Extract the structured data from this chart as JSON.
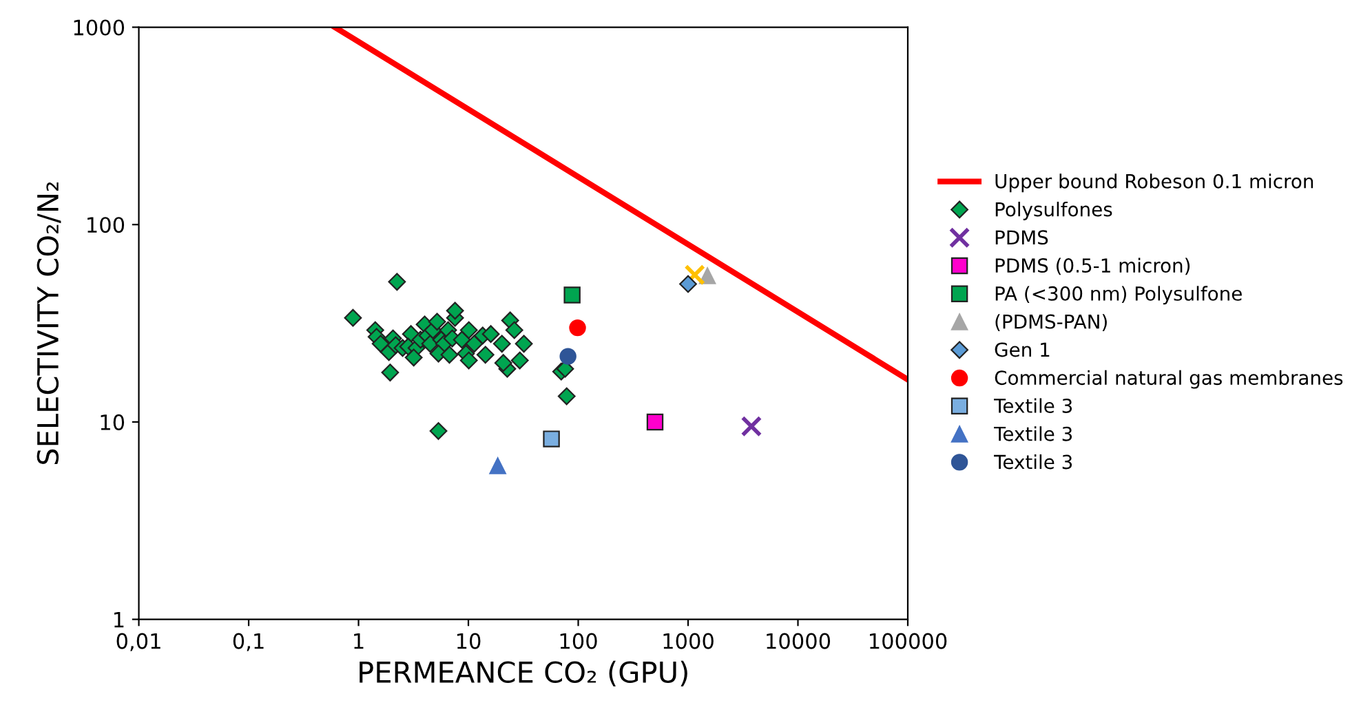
{
  "chart_data": {
    "type": "scatter",
    "xlabel": "PERMEANCE CO₂ (GPU)",
    "ylabel": "SELECTIVITY CO₂/N₂",
    "log": "xy",
    "xlim": [
      0.01,
      100000
    ],
    "ylim": [
      1,
      1000
    ],
    "xticks": [
      {
        "value": 0.01,
        "label": "0,01"
      },
      {
        "value": 0.1,
        "label": "0,1"
      },
      1,
      10,
      100,
      1000,
      10000,
      100000
    ],
    "yticks": [
      1,
      10,
      100,
      1000
    ],
    "grid": false,
    "legend": "right",
    "series": [
      {
        "name": "Upper bound Robeson 0.1 micron",
        "type": "line",
        "color": "#ff0000",
        "marker": "none",
        "line_style": "solid",
        "x": [
          0.61,
          100000
        ],
        "values": [
          1000,
          16.4
        ]
      },
      {
        "name": "Polysulfones",
        "color": "#00a550",
        "marker": "diamond",
        "x": [
          0.89,
          1.42,
          1.46,
          2.24,
          1.59,
          1.89,
          2.06,
          2.18,
          2.52,
          3.0,
          2.83,
          3.37,
          3.67,
          4.0,
          4.24,
          4.49,
          4.76,
          5.19,
          5.66,
          6.0,
          5.34,
          6.54,
          7.13,
          7.56,
          6.73,
          8.73,
          9.5,
          10.1,
          11.3,
          13.5,
          14.3,
          16.0,
          20.2,
          22.6,
          24.0,
          26.2,
          29.4,
          32.0,
          5.34,
          70,
          76,
          78.5,
          20.8,
          1.94,
          7.56,
          3.18,
          10.1
        ],
        "values": [
          33.7,
          29.2,
          27.0,
          51.3,
          24.9,
          22.6,
          26.5,
          24.5,
          23.7,
          27.9,
          24.1,
          23.7,
          26.1,
          31.2,
          27.4,
          24.9,
          29.2,
          32.2,
          26.1,
          24.9,
          22.2,
          29.2,
          26.5,
          33.7,
          21.9,
          26.1,
          22.2,
          20.5,
          24.9,
          27.4,
          21.9,
          27.9,
          24.9,
          18.6,
          32.7,
          29.2,
          20.5,
          24.9,
          9.0,
          18.0,
          18.6,
          13.5,
          19.9,
          17.8,
          36.6,
          21.2,
          29.2
        ]
      },
      {
        "name": "PDMS",
        "color": "#7030a0",
        "marker": "cross",
        "x": [
          3770
        ],
        "values": [
          9.5
        ]
      },
      {
        "name": "PDMS (0.5-1 micron)",
        "color": "#ff00cc",
        "marker": "square",
        "x": [
          500
        ],
        "values": [
          10
        ]
      },
      {
        "name": "PA (<300 nm) Polysulfone",
        "color": "#00a550",
        "marker": "square",
        "x": [
          88
        ],
        "values": [
          44
        ]
      },
      {
        "name": "(PDMS-PAN)",
        "color": "#a6a6a6",
        "marker": "triangle",
        "x": [
          1500
        ],
        "values": [
          55
        ]
      },
      {
        "color": "#ffc000",
        "marker": "cross",
        "x": [
          1150
        ],
        "values": [
          55.6
        ]
      },
      {
        "name": "Gen 1",
        "color": "#5b9bd5",
        "marker": "diamond",
        "x": [
          1000
        ],
        "values": [
          50
        ]
      },
      {
        "name": "Commercial natural gas membranes",
        "color": "#ff0000",
        "marker": "circle",
        "x": [
          98.6
        ],
        "values": [
          30
        ]
      },
      {
        "name": "Textile 3",
        "color": "#7aaee0",
        "marker": "square",
        "x": [
          57
        ],
        "values": [
          8.2
        ]
      },
      {
        "name": "Textile 3",
        "color": "#4472c4",
        "marker": "triangle",
        "x": [
          18.5
        ],
        "values": [
          6.0
        ]
      },
      {
        "name": "Textile 3",
        "color": "#2f5597",
        "marker": "circle",
        "x": [
          80.7
        ],
        "values": [
          21.5
        ]
      }
    ]
  }
}
